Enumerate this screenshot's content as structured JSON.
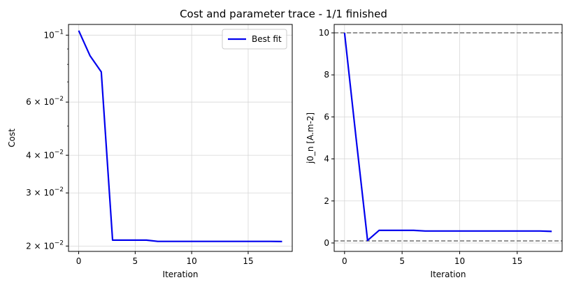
{
  "figure": {
    "title": "Cost and parameter trace - 1/1 finished"
  },
  "chart_data": [
    {
      "type": "line",
      "xlabel": "Iteration",
      "ylabel": "Cost",
      "yscale": "log",
      "xlim": [
        -0.9,
        18.9
      ],
      "ylim": [
        0.0192,
        0.1085
      ],
      "xticks": [
        0,
        5,
        10,
        15
      ],
      "yticks": [
        {
          "value": 0.1,
          "base": "10",
          "exp": "−1"
        },
        {
          "value": 0.06,
          "mant": "6",
          "base": "10",
          "exp": "−2"
        },
        {
          "value": 0.04,
          "mant": "4",
          "base": "10",
          "exp": "−2"
        },
        {
          "value": 0.03,
          "mant": "3",
          "base": "10",
          "exp": "−2"
        },
        {
          "value": 0.02,
          "mant": "2",
          "base": "10",
          "exp": "−2"
        }
      ],
      "minor_yticks": [
        0.05,
        0.07,
        0.08,
        0.09
      ],
      "grid": true,
      "legend": {
        "position": "top-right",
        "entries": [
          "Best fit"
        ]
      },
      "series": [
        {
          "name": "Best fit",
          "color": "#0000ee",
          "x": [
            0,
            1,
            2,
            3,
            4,
            5,
            6,
            7,
            8,
            9,
            10,
            11,
            12,
            13,
            14,
            15,
            16,
            17,
            18
          ],
          "values": [
            0.1035,
            0.0855,
            0.0755,
            0.02092,
            0.02092,
            0.02092,
            0.02092,
            0.02072,
            0.02072,
            0.02072,
            0.02072,
            0.02072,
            0.02072,
            0.02072,
            0.02072,
            0.02072,
            0.02072,
            0.02072,
            0.0207
          ]
        }
      ]
    },
    {
      "type": "line",
      "xlabel": "Iteration",
      "ylabel": "j0_n [A.m-2]",
      "yscale": "linear",
      "xlim": [
        -0.9,
        18.9
      ],
      "ylim": [
        -0.4,
        10.4
      ],
      "xticks": [
        0,
        5,
        10,
        15
      ],
      "yticks": [
        0,
        2,
        4,
        6,
        8,
        10
      ],
      "grid": true,
      "reference_lines": [
        {
          "y": 10,
          "style": "dashed",
          "color": "#707070"
        },
        {
          "y": 0.1,
          "style": "dashed",
          "color": "#707070"
        }
      ],
      "series": [
        {
          "color": "#0000ee",
          "x": [
            0,
            1,
            2,
            3,
            4,
            5,
            6,
            7,
            8,
            9,
            10,
            11,
            12,
            13,
            14,
            15,
            16,
            17,
            18
          ],
          "values": [
            10.0,
            5.0,
            0.12,
            0.6,
            0.6,
            0.6,
            0.6,
            0.57,
            0.57,
            0.57,
            0.57,
            0.57,
            0.57,
            0.57,
            0.57,
            0.57,
            0.57,
            0.57,
            0.55
          ]
        }
      ]
    }
  ]
}
